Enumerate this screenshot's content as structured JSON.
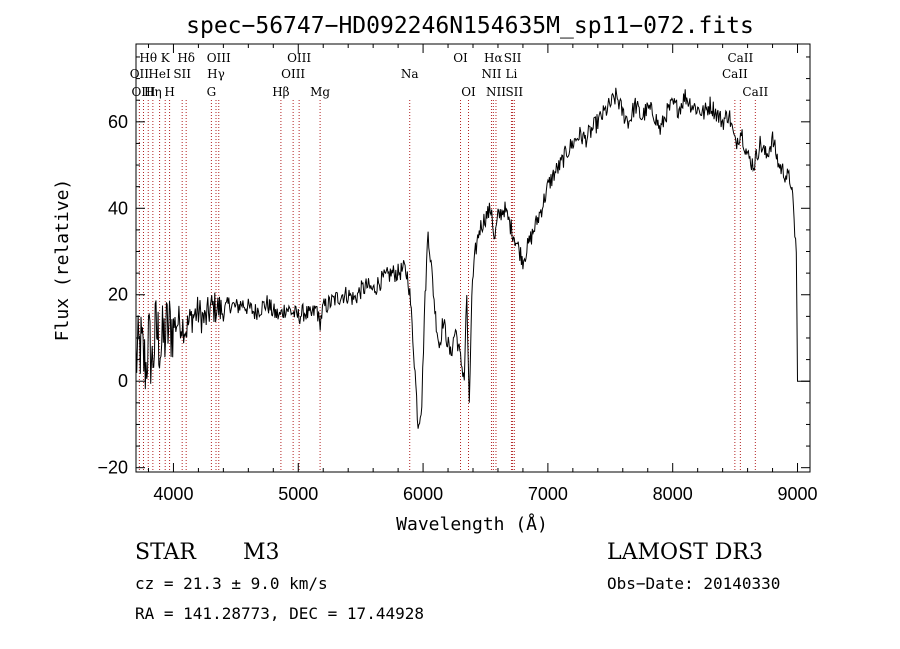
{
  "chart_data": {
    "type": "line",
    "title": "spec−56747−HD092246N154635M_sp11−072.fits",
    "xlabel": "Wavelength (Å)",
    "ylabel": "Flux (relative)",
    "xlim": [
      3700,
      9100
    ],
    "ylim": [
      -21,
      78
    ],
    "xticks": [
      4000,
      5000,
      6000,
      7000,
      8000,
      9000
    ],
    "yticks": [
      -20,
      0,
      20,
      40,
      60
    ],
    "xtick_labels": [
      "4000",
      "5000",
      "6000",
      "7000",
      "8000",
      "9000"
    ],
    "ytick_labels": [
      "−20",
      "0",
      "20",
      "40",
      "60"
    ],
    "spectrum_anchors": [
      [
        3700,
        5
      ],
      [
        3740,
        8
      ],
      [
        3780,
        3
      ],
      [
        3800,
        10
      ],
      [
        3830,
        4
      ],
      [
        3860,
        12
      ],
      [
        3900,
        8
      ],
      [
        3950,
        12
      ],
      [
        4000,
        13
      ],
      [
        4050,
        14
      ],
      [
        4100,
        12
      ],
      [
        4150,
        15
      ],
      [
        4200,
        16
      ],
      [
        4250,
        14
      ],
      [
        4300,
        17
      ],
      [
        4350,
        17
      ],
      [
        4400,
        16
      ],
      [
        4450,
        18
      ],
      [
        4500,
        17
      ],
      [
        4550,
        18
      ],
      [
        4600,
        17
      ],
      [
        4650,
        16
      ],
      [
        4700,
        17
      ],
      [
        4750,
        18
      ],
      [
        4800,
        16
      ],
      [
        4850,
        15
      ],
      [
        4900,
        17
      ],
      [
        4950,
        16
      ],
      [
        5000,
        15
      ],
      [
        5050,
        16
      ],
      [
        5100,
        15
      ],
      [
        5150,
        17
      ],
      [
        5170,
        13
      ],
      [
        5200,
        17
      ],
      [
        5250,
        18
      ],
      [
        5300,
        19
      ],
      [
        5350,
        20
      ],
      [
        5400,
        20
      ],
      [
        5450,
        19
      ],
      [
        5500,
        21
      ],
      [
        5550,
        22
      ],
      [
        5600,
        21
      ],
      [
        5650,
        23
      ],
      [
        5700,
        24
      ],
      [
        5750,
        25
      ],
      [
        5800,
        25
      ],
      [
        5850,
        26
      ],
      [
        5880,
        24
      ],
      [
        5900,
        18
      ],
      [
        5930,
        5
      ],
      [
        5960,
        -10
      ],
      [
        5990,
        -5
      ],
      [
        6010,
        15
      ],
      [
        6040,
        35
      ],
      [
        6070,
        25
      ],
      [
        6100,
        15
      ],
      [
        6130,
        8
      ],
      [
        6160,
        14
      ],
      [
        6190,
        10
      ],
      [
        6220,
        6
      ],
      [
        6260,
        12
      ],
      [
        6300,
        5
      ],
      [
        6330,
        1
      ],
      [
        6350,
        20
      ],
      [
        6370,
        -7
      ],
      [
        6390,
        20
      ],
      [
        6420,
        30
      ],
      [
        6450,
        35
      ],
      [
        6500,
        38
      ],
      [
        6550,
        40
      ],
      [
        6570,
        32
      ],
      [
        6600,
        38
      ],
      [
        6650,
        40
      ],
      [
        6700,
        36
      ],
      [
        6750,
        32
      ],
      [
        6800,
        28
      ],
      [
        6850,
        32
      ],
      [
        6900,
        36
      ],
      [
        6950,
        40
      ],
      [
        7000,
        45
      ],
      [
        7050,
        48
      ],
      [
        7100,
        50
      ],
      [
        7150,
        53
      ],
      [
        7200,
        55
      ],
      [
        7250,
        57
      ],
      [
        7300,
        56
      ],
      [
        7350,
        58
      ],
      [
        7400,
        60
      ],
      [
        7450,
        62
      ],
      [
        7500,
        64
      ],
      [
        7550,
        66
      ],
      [
        7600,
        62
      ],
      [
        7650,
        60
      ],
      [
        7700,
        64
      ],
      [
        7750,
        61
      ],
      [
        7800,
        63
      ],
      [
        7850,
        62
      ],
      [
        7900,
        58
      ],
      [
        7950,
        62
      ],
      [
        8000,
        64
      ],
      [
        8050,
        63
      ],
      [
        8100,
        66
      ],
      [
        8150,
        64
      ],
      [
        8200,
        63
      ],
      [
        8250,
        62
      ],
      [
        8300,
        64
      ],
      [
        8350,
        62
      ],
      [
        8400,
        60
      ],
      [
        8450,
        62
      ],
      [
        8500,
        55
      ],
      [
        8550,
        58
      ],
      [
        8600,
        52
      ],
      [
        8650,
        50
      ],
      [
        8700,
        55
      ],
      [
        8750,
        52
      ],
      [
        8800,
        56
      ],
      [
        8850,
        50
      ],
      [
        8900,
        48
      ],
      [
        8950,
        46
      ],
      [
        8990,
        30
      ],
      [
        9000,
        0
      ]
    ],
    "spectral_lines": [
      {
        "label": "Hθ",
        "x": 3798,
        "row": 0
      },
      {
        "label": "OII",
        "x": 3727,
        "row": 1
      },
      {
        "label": "OIII",
        "x": 3760,
        "row": 2
      },
      {
        "label": "Hη",
        "x": 3835,
        "row": 2
      },
      {
        "label": "K",
        "x": 3934,
        "row": 0
      },
      {
        "label": "HeI",
        "x": 3889,
        "row": 1
      },
      {
        "label": "H",
        "x": 3969,
        "row": 2
      },
      {
        "label": "SII",
        "x": 4070,
        "row": 1
      },
      {
        "label": "Hδ",
        "x": 4102,
        "row": 0
      },
      {
        "label": "OIII",
        "x": 4363,
        "row": 0
      },
      {
        "label": "Hγ",
        "x": 4341,
        "row": 1
      },
      {
        "label": "G",
        "x": 4304,
        "row": 2
      },
      {
        "label": "OIII",
        "x": 5007,
        "row": 0
      },
      {
        "label": "OIII",
        "x": 4959,
        "row": 1
      },
      {
        "label": "Hβ",
        "x": 4861,
        "row": 2
      },
      {
        "label": "Mg",
        "x": 5175,
        "row": 2
      },
      {
        "label": "Na",
        "x": 5893,
        "row": 1
      },
      {
        "label": "OI",
        "x": 6300,
        "row": 0
      },
      {
        "label": "OI",
        "x": 6364,
        "row": 2
      },
      {
        "label": "Hα",
        "x": 6563,
        "row": 0
      },
      {
        "label": "NII",
        "x": 6548,
        "row": 1
      },
      {
        "label": "NII",
        "x": 6584,
        "row": 2
      },
      {
        "label": "SII",
        "x": 6717,
        "row": 0
      },
      {
        "label": "Li",
        "x": 6708,
        "row": 1
      },
      {
        "label": "SII",
        "x": 6731,
        "row": 2
      },
      {
        "label": "CaII",
        "x": 8542,
        "row": 0
      },
      {
        "label": "CaII",
        "x": 8498,
        "row": 1
      },
      {
        "label": "CaII",
        "x": 8662,
        "row": 2
      }
    ]
  },
  "info": {
    "object_class": "STAR",
    "subclass": "M3",
    "survey": "LAMOST DR3",
    "redshift": "cz = 21.3 ± 9.0 km/s",
    "obs_date": "Obs−Date: 20140330",
    "coords": "RA = 141.28773, DEC =  17.44928"
  },
  "colors": {
    "spectrum": "#000000",
    "line_markers": "#b22222",
    "background": "#ffffff"
  }
}
